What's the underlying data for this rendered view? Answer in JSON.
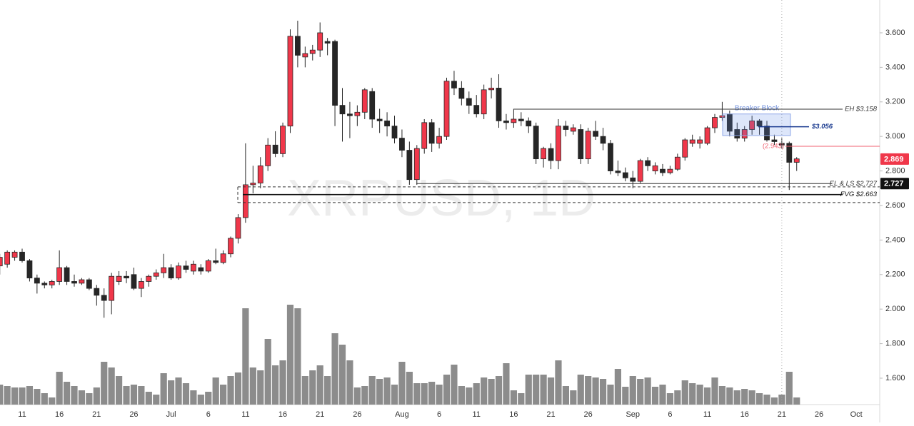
{
  "chart_data": {
    "type": "candlestick",
    "watermark": "XRPUSD, 1D",
    "categories": [
      null,
      null,
      null,
      "11",
      null,
      null,
      null,
      null,
      "16",
      null,
      null,
      null,
      null,
      "21",
      null,
      null,
      null,
      null,
      "26",
      null,
      null,
      null,
      null,
      "Jul",
      null,
      null,
      null,
      null,
      "6",
      null,
      null,
      null,
      null,
      "11",
      null,
      null,
      null,
      null,
      "16",
      null,
      null,
      null,
      null,
      "21",
      null,
      null,
      null,
      null,
      "26",
      null,
      null,
      null,
      null,
      null,
      "Aug",
      null,
      null,
      null,
      null,
      "6",
      null,
      null,
      null,
      null,
      "11",
      null,
      null,
      null,
      null,
      "16",
      null,
      null,
      null,
      null,
      "21",
      null,
      null,
      null,
      null,
      "26",
      null,
      null,
      null,
      null,
      null,
      "Sep",
      null,
      null,
      null,
      null,
      "6",
      null,
      null,
      null,
      null,
      "11",
      null,
      null,
      null,
      null,
      "16",
      null,
      null,
      null,
      null,
      "21",
      null,
      null,
      null,
      null,
      "26",
      null,
      null,
      null,
      null,
      "Oct",
      null,
      null
    ],
    "open": [
      2.25,
      2.26,
      2.3,
      2.33,
      2.28,
      2.18,
      2.15,
      2.14,
      2.16,
      2.24,
      2.16,
      2.15,
      2.17,
      2.12,
      2.08,
      2.05,
      2.16,
      2.19,
      2.2,
      2.12,
      2.16,
      2.19,
      2.21,
      2.24,
      2.18,
      2.25,
      2.22,
      2.24,
      2.22,
      2.28,
      2.27,
      2.32,
      2.41,
      2.53,
      2.72,
      2.73,
      2.83,
      2.95,
      2.9,
      3.06,
      3.58,
      3.46,
      3.48,
      3.5,
      3.55,
      3.55,
      3.18,
      3.13,
      3.12,
      3.14,
      3.26,
      3.1,
      3.09,
      3.06,
      2.99,
      2.92,
      2.75,
      2.93,
      3.08,
      2.96,
      3.0,
      3.32,
      3.28,
      3.22,
      3.18,
      3.13,
      3.27,
      3.28,
      3.09,
      3.08,
      3.1,
      3.09,
      3.06,
      2.87,
      2.93,
      2.86,
      3.06,
      3.03,
      3.04,
      2.87,
      3.03,
      3.0,
      2.96,
      2.8,
      2.79,
      2.76,
      2.74,
      2.86,
      2.8,
      2.81,
      2.79,
      2.81,
      2.88,
      2.96,
      2.96,
      2.96,
      3.05,
      3.11,
      3.13,
      3.04,
      2.99,
      3.04,
      3.09,
      3.06,
      2.98,
      2.96,
      2.96,
      2.85,
      null,
      null,
      null,
      null,
      null,
      null,
      null,
      null,
      null,
      null
    ],
    "high": [
      2.32,
      2.34,
      2.34,
      2.35,
      2.29,
      2.2,
      2.16,
      2.17,
      2.34,
      2.25,
      2.2,
      2.18,
      2.18,
      2.14,
      2.12,
      2.21,
      2.22,
      2.22,
      2.24,
      2.18,
      2.2,
      2.23,
      2.32,
      2.26,
      2.27,
      2.28,
      2.28,
      2.26,
      2.29,
      2.35,
      2.34,
      2.42,
      2.55,
      2.96,
      2.83,
      2.88,
      2.99,
      3.03,
      3.08,
      3.62,
      3.67,
      3.52,
      3.53,
      3.66,
      3.57,
      3.56,
      3.28,
      3.2,
      3.18,
      3.28,
      3.28,
      3.16,
      3.14,
      3.12,
      3.04,
      2.97,
      2.95,
      3.1,
      3.1,
      3.05,
      3.34,
      3.38,
      3.32,
      3.26,
      3.24,
      3.3,
      3.34,
      3.36,
      3.13,
      3.16,
      3.14,
      3.11,
      3.08,
      2.94,
      2.96,
      3.1,
      3.09,
      3.07,
      3.07,
      3.05,
      3.09,
      3.05,
      2.98,
      2.86,
      2.82,
      2.8,
      2.87,
      2.88,
      2.85,
      2.84,
      2.83,
      2.9,
      2.99,
      3.01,
      3.0,
      3.06,
      3.13,
      3.2,
      3.15,
      3.08,
      3.06,
      3.12,
      3.1,
      3.09,
      3.01,
      2.99,
      2.97,
      2.88,
      null,
      null,
      null,
      null,
      null,
      null,
      null,
      null,
      null,
      null
    ],
    "low": [
      2.2,
      2.24,
      2.28,
      2.27,
      2.16,
      2.09,
      2.12,
      2.12,
      2.14,
      2.14,
      2.13,
      2.14,
      2.11,
      2.02,
      1.95,
      1.97,
      2.14,
      2.15,
      2.11,
      2.07,
      2.13,
      2.17,
      2.18,
      2.17,
      2.17,
      2.21,
      2.2,
      2.2,
      2.21,
      2.26,
      2.26,
      2.3,
      2.38,
      2.5,
      2.67,
      2.7,
      2.8,
      2.88,
      2.88,
      3.02,
      3.4,
      3.4,
      3.44,
      3.46,
      3.47,
      3.06,
      2.97,
      2.99,
      3.06,
      3.1,
      3.05,
      3.02,
      3.0,
      2.96,
      2.88,
      2.72,
      2.72,
      2.9,
      2.91,
      2.93,
      2.98,
      3.24,
      3.18,
      3.13,
      3.11,
      3.1,
      3.22,
      3.05,
      3.04,
      3.05,
      3.06,
      3.02,
      2.84,
      2.82,
      2.81,
      2.81,
      3.0,
      3.01,
      2.84,
      2.84,
      2.98,
      2.92,
      2.78,
      2.77,
      2.74,
      2.7,
      2.73,
      2.8,
      2.78,
      2.77,
      2.78,
      2.8,
      2.86,
      2.94,
      2.93,
      2.95,
      3.02,
      3.09,
      3.0,
      2.97,
      2.97,
      3.01,
      3.01,
      2.97,
      2.95,
      2.93,
      2.69,
      2.8,
      null,
      null,
      null,
      null,
      null,
      null,
      null,
      null,
      null,
      null
    ],
    "close": [
      2.3,
      2.33,
      2.33,
      2.28,
      2.18,
      2.15,
      2.14,
      2.16,
      2.24,
      2.16,
      2.15,
      2.17,
      2.12,
      2.08,
      2.05,
      2.19,
      2.19,
      2.18,
      2.12,
      2.16,
      2.19,
      2.21,
      2.24,
      2.18,
      2.25,
      2.23,
      2.26,
      2.22,
      2.28,
      2.27,
      2.32,
      2.41,
      2.53,
      2.72,
      2.73,
      2.83,
      2.95,
      2.9,
      3.06,
      3.58,
      3.47,
      3.48,
      3.5,
      3.6,
      3.54,
      3.18,
      3.13,
      3.12,
      3.14,
      3.27,
      3.1,
      3.09,
      3.06,
      2.99,
      2.92,
      2.75,
      2.93,
      3.08,
      2.96,
      3.0,
      3.32,
      3.28,
      3.22,
      3.18,
      3.13,
      3.27,
      3.28,
      3.09,
      3.08,
      3.1,
      3.09,
      3.06,
      2.87,
      2.93,
      2.86,
      3.06,
      3.04,
      3.05,
      2.87,
      3.03,
      3.0,
      2.96,
      2.8,
      2.79,
      2.76,
      2.74,
      2.86,
      2.83,
      2.83,
      2.79,
      2.81,
      2.88,
      2.98,
      2.98,
      2.98,
      3.05,
      3.11,
      3.12,
      3.03,
      2.99,
      3.04,
      3.09,
      3.06,
      2.98,
      2.97,
      2.95,
      2.85,
      2.87,
      null,
      null,
      null,
      null,
      null,
      null,
      null,
      null,
      null,
      null
    ],
    "volume": [
      28,
      26,
      24,
      24,
      26,
      22,
      16,
      10,
      46,
      32,
      26,
      20,
      16,
      24,
      60,
      52,
      40,
      26,
      28,
      26,
      18,
      14,
      44,
      34,
      38,
      30,
      20,
      14,
      18,
      38,
      28,
      40,
      45,
      135,
      52,
      48,
      92,
      55,
      62,
      140,
      135,
      40,
      48,
      55,
      40,
      100,
      84,
      62,
      24,
      26,
      40,
      36,
      38,
      28,
      60,
      46,
      30,
      30,
      32,
      28,
      42,
      56,
      26,
      24,
      30,
      38,
      36,
      40,
      58,
      20,
      16,
      42,
      42,
      42,
      38,
      62,
      26,
      20,
      42,
      40,
      38,
      36,
      28,
      50,
      25,
      40,
      36,
      38,
      25,
      28,
      16,
      20,
      34,
      30,
      28,
      24,
      38,
      26,
      24,
      20,
      22,
      20,
      16,
      14,
      10,
      14,
      46,
      10,
      null,
      null,
      null,
      null,
      null,
      null,
      null,
      null,
      null,
      null
    ],
    "up_color": "#f0374a",
    "down_color": "#262626",
    "volume_color": "#8c8c8c",
    "ylim": [
      1.447,
      3.79
    ],
    "volume_ylim": [
      0,
      150
    ],
    "yticks": [
      {
        "value": 1.6,
        "label": "1.600"
      },
      {
        "value": 1.8,
        "label": "1.800"
      },
      {
        "value": 2.0,
        "label": "2.000"
      },
      {
        "value": 2.2,
        "label": "2.200"
      },
      {
        "value": 2.4,
        "label": "2.400"
      },
      {
        "value": 2.6,
        "label": "2.600"
      },
      {
        "value": 2.8,
        "label": "2.800"
      },
      {
        "value": 3.0,
        "label": "3.000"
      },
      {
        "value": 3.2,
        "label": "3.200"
      },
      {
        "value": 3.4,
        "label": "3.400"
      },
      {
        "value": 3.6,
        "label": "3.600"
      }
    ],
    "annotations": [
      {
        "label": "EH $3.158",
        "value": 3.158
      },
      {
        "label": "EL & LS $2.727",
        "value": 2.727
      },
      {
        "label": "FVG $2.663",
        "value": 2.663
      },
      {
        "label": "$3.056",
        "value": 3.056
      },
      {
        "label": "(2.943)",
        "value": 2.943
      }
    ],
    "fvg_bounds": [
      2.708,
      2.617
    ],
    "breaker_block": {
      "label": "Breaker Block",
      "top": 3.13,
      "bottom": 3.005
    },
    "price_labels": [
      2.869,
      2.727
    ]
  }
}
